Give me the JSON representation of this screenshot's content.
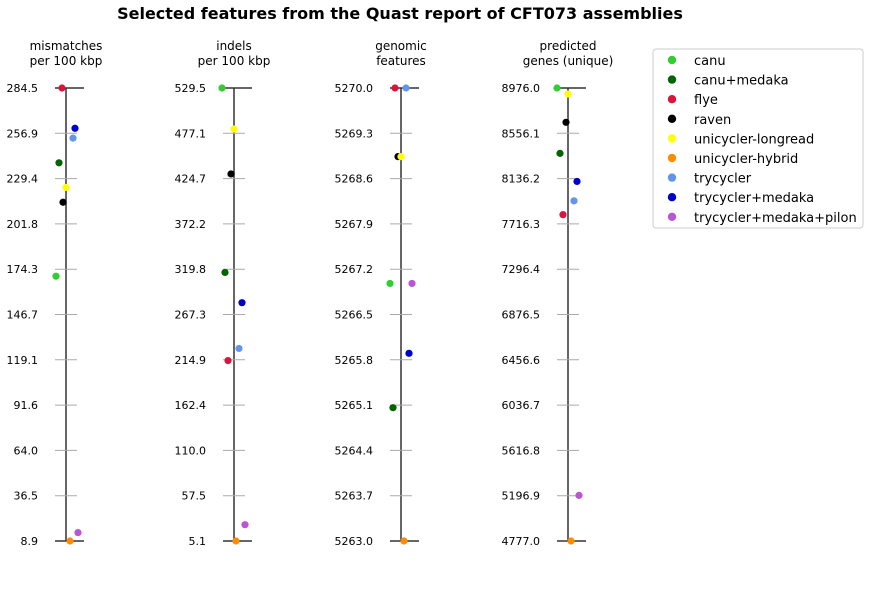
{
  "chart_data": {
    "type": "scatter",
    "title": "Selected features from the Quast report of CFT073 assemblies",
    "legend_position": "top-right",
    "grid": false,
    "series": [
      {
        "name": "canu",
        "color": "#32cd32"
      },
      {
        "name": "canu+medaka",
        "color": "#006400"
      },
      {
        "name": "flye",
        "color": "#dc143c"
      },
      {
        "name": "raven",
        "color": "#000000"
      },
      {
        "name": "unicycler-longread",
        "color": "#ffff00"
      },
      {
        "name": "unicycler-hybrid",
        "color": "#ff8c00"
      },
      {
        "name": "trycycler",
        "color": "#6495ed"
      },
      {
        "name": "trycycler+medaka",
        "color": "#0000cd"
      },
      {
        "name": "trycycler+medaka+pilon",
        "color": "#ba55d3"
      }
    ],
    "axes": [
      {
        "label_lines": [
          "mismatches",
          "per 100 kbp"
        ],
        "ylim": [
          8.9,
          284.5
        ],
        "ticks": [
          "284.5",
          "256.9",
          "229.4",
          "201.8",
          "174.3",
          "146.7",
          "119.1",
          "91.6",
          "64.0",
          "36.5",
          "8.9"
        ],
        "values": [
          170.0,
          239.0,
          284.5,
          215.0,
          224.0,
          8.9,
          254.0,
          260.0,
          14.0
        ],
        "jitter": [
          -10,
          -7,
          -4,
          -3,
          0,
          4,
          7,
          9,
          12
        ]
      },
      {
        "label_lines": [
          "indels",
          "per 100 kbp"
        ],
        "ylim": [
          5.1,
          529.5
        ],
        "ticks": [
          "529.5",
          "477.1",
          "424.7",
          "372.2",
          "319.8",
          "267.3",
          "214.9",
          "162.4",
          "110.0",
          "57.5",
          "5.1"
        ],
        "values": [
          529.5,
          316.0,
          214.0,
          430.0,
          482.0,
          5.1,
          228.0,
          281.0,
          24.0
        ],
        "jitter": [
          -12,
          -9,
          -6,
          -3,
          0,
          2,
          5,
          8,
          11
        ]
      },
      {
        "label_lines": [
          "genomic",
          "features"
        ],
        "ylim": [
          5263.0,
          5270.0
        ],
        "ticks": [
          "5270.0",
          "5269.3",
          "5268.6",
          "5267.9",
          "5267.2",
          "5266.5",
          "5265.8",
          "5265.1",
          "5264.4",
          "5263.7",
          "5263.0"
        ],
        "values": [
          5266.98,
          5265.06,
          5270.0,
          5268.94,
          5268.94,
          5263.0,
          5270.0,
          5265.9,
          5266.98
        ],
        "jitter": [
          -11,
          -8,
          -6,
          -3,
          0,
          3,
          5,
          8,
          11
        ]
      },
      {
        "label_lines": [
          "predicted",
          "genes (unique)"
        ],
        "ylim": [
          4777.0,
          8976.0
        ],
        "ticks": [
          "8976.0",
          "8556.1",
          "8136.2",
          "7716.3",
          "7296.4",
          "6876.5",
          "6456.6",
          "6036.7",
          "5616.8",
          "5196.9",
          "4777.0"
        ],
        "values": [
          8976.0,
          8370.0,
          7802.0,
          8658.0,
          8920.0,
          4777.0,
          7930.0,
          8110.0,
          5200.0
        ],
        "jitter": [
          -11,
          -8,
          -5,
          -2,
          0,
          3,
          6,
          9,
          11
        ]
      }
    ]
  }
}
